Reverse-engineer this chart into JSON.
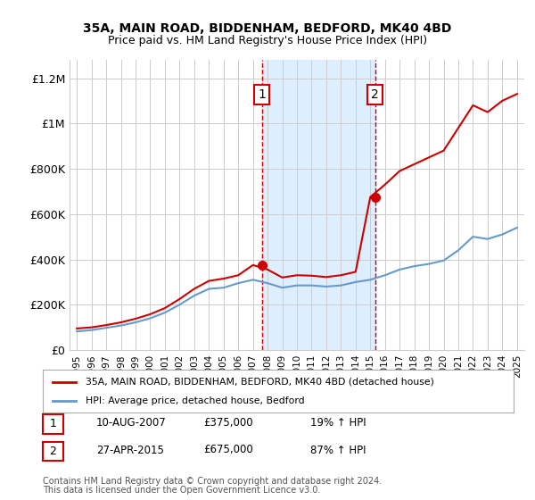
{
  "title1": "35A, MAIN ROAD, BIDDENHAM, BEDFORD, MK40 4BD",
  "title2": "Price paid vs. HM Land Registry's House Price Index (HPI)",
  "ylabel_ticks": [
    "£0",
    "£200K",
    "£400K",
    "£600K",
    "£800K",
    "£1M",
    "£1.2M"
  ],
  "ytick_values": [
    0,
    200000,
    400000,
    600000,
    800000,
    1000000,
    1200000
  ],
  "ylim": [
    0,
    1280000
  ],
  "xlim_start": 1994.5,
  "xlim_end": 2025.5,
  "sale1_year": 2007.61,
  "sale1_price": 375000,
  "sale2_year": 2015.32,
  "sale2_price": 675000,
  "annotation1_label": "1",
  "annotation2_label": "2",
  "legend_line1": "35A, MAIN ROAD, BIDDENHAM, BEDFORD, MK40 4BD (detached house)",
  "legend_line2": "HPI: Average price, detached house, Bedford",
  "table_row1": [
    "1",
    "10-AUG-2007",
    "£375,000",
    "19% ↑ HPI"
  ],
  "table_row2": [
    "2",
    "27-APR-2015",
    "£675,000",
    "87% ↑ HPI"
  ],
  "footnote1": "Contains HM Land Registry data © Crown copyright and database right 2024.",
  "footnote2": "This data is licensed under the Open Government Licence v3.0.",
  "red_color": "#cc0000",
  "blue_color": "#6699cc",
  "shade_color": "#ddeeff",
  "background_color": "#ffffff",
  "grid_color": "#cccccc",
  "annotation_box_color": "#cc0000",
  "hpi_years": [
    1995,
    1996,
    1997,
    1998,
    1999,
    2000,
    2001,
    2002,
    2003,
    2004,
    2005,
    2006,
    2007,
    2008,
    2009,
    2010,
    2011,
    2012,
    2013,
    2014,
    2015,
    2016,
    2017,
    2018,
    2019,
    2020,
    2021,
    2022,
    2023,
    2024,
    2025
  ],
  "hpi_values": [
    82000,
    88000,
    98000,
    108000,
    122000,
    140000,
    165000,
    200000,
    240000,
    270000,
    275000,
    295000,
    310000,
    295000,
    275000,
    285000,
    285000,
    280000,
    285000,
    300000,
    310000,
    330000,
    355000,
    370000,
    380000,
    395000,
    440000,
    500000,
    490000,
    510000,
    540000
  ],
  "property_years": [
    1995,
    1996,
    1997,
    1998,
    1999,
    2000,
    2001,
    2002,
    2003,
    2004,
    2005,
    2006,
    2007,
    2008,
    2009,
    2010,
    2011,
    2012,
    2013,
    2014,
    2015,
    2016,
    2017,
    2018,
    2019,
    2020,
    2021,
    2022,
    2023,
    2024,
    2025
  ],
  "property_values": [
    95000,
    100000,
    110000,
    122000,
    138000,
    158000,
    185000,
    225000,
    270000,
    305000,
    315000,
    330000,
    375000,
    355000,
    320000,
    330000,
    328000,
    322000,
    330000,
    345000,
    675000,
    730000,
    790000,
    820000,
    850000,
    880000,
    980000,
    1080000,
    1050000,
    1100000,
    1130000
  ]
}
